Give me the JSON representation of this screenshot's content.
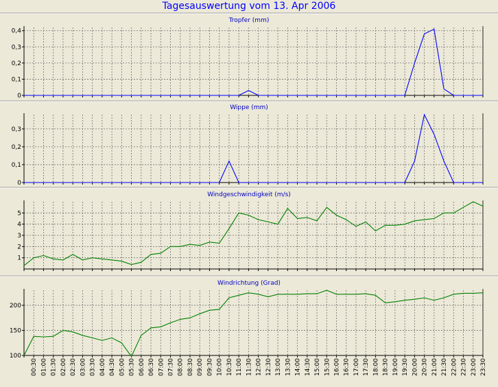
{
  "page_title": "Tagesauswertung vom 13. Apr 2006",
  "x_ticks": [
    "00:30",
    "01:00",
    "01:30",
    "02:00",
    "02:30",
    "03:00",
    "03:30",
    "04:00",
    "04:30",
    "05:00",
    "05:30",
    "06:00",
    "06:30",
    "07:00",
    "07:30",
    "08:00",
    "08:30",
    "09:00",
    "09:30",
    "10:00",
    "10:30",
    "11:00",
    "11:30",
    "12:00",
    "12:30",
    "13:00",
    "13:30",
    "14:00",
    "14:30",
    "15:00",
    "15:30",
    "16:00",
    "16:30",
    "17:00",
    "17:30",
    "18:00",
    "18:30",
    "19:00",
    "19:30",
    "20:00",
    "20:30",
    "21:00",
    "21:30",
    "22:00",
    "22:30",
    "23:00",
    "23:30"
  ],
  "chart_data": [
    {
      "type": "line",
      "title": "Tropfer (mm)",
      "color": "#0000FF",
      "ylim": [
        0,
        0.42
      ],
      "yticks": [
        "0",
        "0,1",
        "0,2",
        "0,3",
        "0,4"
      ],
      "ytick_values": [
        0,
        0.1,
        0.2,
        0.3,
        0.4
      ],
      "x": [
        "00:00",
        "00:30",
        "01:00",
        "01:30",
        "02:00",
        "02:30",
        "03:00",
        "03:30",
        "04:00",
        "04:30",
        "05:00",
        "05:30",
        "06:00",
        "06:30",
        "07:00",
        "07:30",
        "08:00",
        "08:30",
        "09:00",
        "09:30",
        "10:00",
        "10:30",
        "11:00",
        "11:30",
        "12:00",
        "12:30",
        "13:00",
        "13:30",
        "14:00",
        "14:30",
        "15:00",
        "15:30",
        "16:00",
        "16:30",
        "17:00",
        "17:30",
        "18:00",
        "18:30",
        "19:00",
        "19:30",
        "20:00",
        "20:30",
        "21:00",
        "21:30",
        "22:00",
        "22:30",
        "23:00",
        "23:30"
      ],
      "values": [
        0,
        0,
        0,
        0,
        0,
        0,
        0,
        0,
        0,
        0,
        0,
        0,
        0,
        0,
        0,
        0,
        0,
        0,
        0,
        0,
        0,
        0,
        0,
        0.03,
        0,
        0,
        0,
        0,
        0,
        0,
        0,
        0,
        0,
        0,
        0,
        0,
        0,
        0,
        0,
        0,
        0.2,
        0.38,
        0.41,
        0.04,
        0,
        0,
        0,
        0
      ]
    },
    {
      "type": "line",
      "title": "Wippe (mm)",
      "color": "#0000FF",
      "ylim": [
        0,
        0.38
      ],
      "yticks": [
        "0",
        "0,1",
        "0,2",
        "0,3"
      ],
      "ytick_values": [
        0,
        0.1,
        0.2,
        0.3
      ],
      "x": [
        "00:00",
        "00:30",
        "01:00",
        "01:30",
        "02:00",
        "02:30",
        "03:00",
        "03:30",
        "04:00",
        "04:30",
        "05:00",
        "05:30",
        "06:00",
        "06:30",
        "07:00",
        "07:30",
        "08:00",
        "08:30",
        "09:00",
        "09:30",
        "10:00",
        "10:30",
        "11:00",
        "11:30",
        "12:00",
        "12:30",
        "13:00",
        "13:30",
        "14:00",
        "14:30",
        "15:00",
        "15:30",
        "16:00",
        "16:30",
        "17:00",
        "17:30",
        "18:00",
        "18:30",
        "19:00",
        "19:30",
        "20:00",
        "20:30",
        "21:00",
        "21:30",
        "22:00",
        "22:30",
        "23:00",
        "23:30"
      ],
      "values": [
        0,
        0,
        0,
        0,
        0,
        0,
        0,
        0,
        0,
        0,
        0,
        0,
        0,
        0,
        0,
        0,
        0,
        0,
        0,
        0,
        0,
        0.12,
        0,
        0,
        0,
        0,
        0,
        0,
        0,
        0,
        0,
        0,
        0,
        0,
        0,
        0,
        0,
        0,
        0,
        0,
        0.12,
        0.38,
        0.27,
        0.12,
        0,
        0,
        0,
        0
      ]
    },
    {
      "type": "line",
      "title": "Windgeschwindigkeit (m/s)",
      "color": "#008000",
      "ylim": [
        0,
        6
      ],
      "yticks": [
        "1",
        "2",
        "3",
        "4",
        "5"
      ],
      "ytick_values": [
        1,
        2,
        3,
        4,
        5
      ],
      "x": [
        "00:00",
        "00:30",
        "01:00",
        "01:30",
        "02:00",
        "02:30",
        "03:00",
        "03:30",
        "04:00",
        "04:30",
        "05:00",
        "05:30",
        "06:00",
        "06:30",
        "07:00",
        "07:30",
        "08:00",
        "08:30",
        "09:00",
        "09:30",
        "10:00",
        "10:30",
        "11:00",
        "11:30",
        "12:00",
        "12:30",
        "13:00",
        "13:30",
        "14:00",
        "14:30",
        "15:00",
        "15:30",
        "16:00",
        "16:30",
        "17:00",
        "17:30",
        "18:00",
        "18:30",
        "19:00",
        "19:30",
        "20:00",
        "20:30",
        "21:00",
        "21:30",
        "22:00",
        "22:30",
        "23:00",
        "23:30"
      ],
      "values": [
        0.3,
        1.0,
        1.2,
        0.9,
        0.8,
        1.3,
        0.8,
        1.0,
        0.9,
        0.8,
        0.7,
        0.4,
        0.6,
        1.3,
        1.4,
        2.0,
        2.0,
        2.2,
        2.1,
        2.4,
        2.3,
        3.6,
        5.0,
        4.8,
        4.4,
        4.2,
        4.0,
        5.4,
        4.5,
        4.6,
        4.3,
        5.5,
        4.8,
        4.4,
        3.8,
        4.2,
        3.4,
        3.9,
        3.9,
        4.0,
        4.3,
        4.4,
        4.5,
        5.0,
        5.0,
        5.5,
        6.0,
        5.6
      ]
    },
    {
      "type": "line",
      "title": "Windrichtung (Grad)",
      "color": "#008000",
      "ylim": [
        100,
        230
      ],
      "yticks": [
        "100",
        "150",
        "200"
      ],
      "ytick_values": [
        100,
        150,
        200
      ],
      "x": [
        "00:00",
        "00:30",
        "01:00",
        "01:30",
        "02:00",
        "02:30",
        "03:00",
        "03:30",
        "04:00",
        "04:30",
        "05:00",
        "05:30",
        "06:00",
        "06:30",
        "07:00",
        "07:30",
        "08:00",
        "08:30",
        "09:00",
        "09:30",
        "10:00",
        "10:30",
        "11:00",
        "11:30",
        "12:00",
        "12:30",
        "13:00",
        "13:30",
        "14:00",
        "14:30",
        "15:00",
        "15:30",
        "16:00",
        "16:30",
        "17:00",
        "17:30",
        "18:00",
        "18:30",
        "19:00",
        "19:30",
        "20:00",
        "20:30",
        "21:00",
        "21:30",
        "22:00",
        "22:30",
        "23:00",
        "23:30"
      ],
      "values": [
        100,
        138,
        137,
        138,
        150,
        147,
        140,
        135,
        130,
        135,
        125,
        98,
        140,
        155,
        157,
        165,
        172,
        175,
        183,
        190,
        192,
        215,
        220,
        225,
        222,
        217,
        222,
        222,
        222,
        223,
        223,
        230,
        222,
        222,
        222,
        223,
        220,
        205,
        207,
        210,
        212,
        215,
        210,
        215,
        222,
        224,
        224,
        225
      ]
    }
  ]
}
